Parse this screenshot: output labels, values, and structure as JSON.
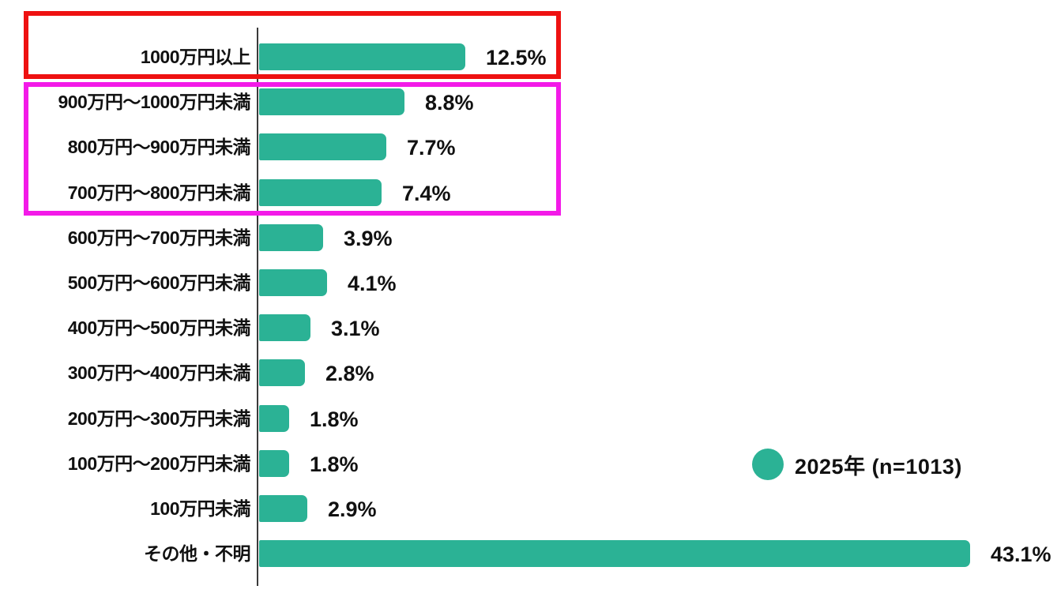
{
  "chart_data": {
    "type": "bar",
    "orientation": "horizontal",
    "title": "",
    "xlabel": "",
    "ylabel": "",
    "xlim": [
      0,
      45
    ],
    "grid": false,
    "categories": [
      "1000万円以上",
      "900万円〜1000万円未満",
      "800万円〜900万円未満",
      "700万円〜800万円未満",
      "600万円〜700万円未満",
      "500万円〜600万円未満",
      "400万円〜500万円未満",
      "300万円〜400万円未満",
      "200万円〜300万円未満",
      "100万円〜200万円未満",
      "100万円未満",
      "その他・不明"
    ],
    "values": [
      12.5,
      8.8,
      7.7,
      7.4,
      3.9,
      4.1,
      3.1,
      2.8,
      1.8,
      1.8,
      2.9,
      43.1
    ],
    "value_labels": [
      "12.5%",
      "8.8%",
      "7.7%",
      "7.4%",
      "3.9%",
      "4.1%",
      "3.1%",
      "2.8%",
      "1.8%",
      "1.8%",
      "2.9%",
      "43.1%"
    ],
    "bar_color": "#2bb295",
    "axis_color": "#3a3a3a",
    "text_color": "#111111",
    "legend": {
      "label": "2025年 (n=1013)",
      "marker": "circle",
      "marker_color": "#2bb295",
      "position": "right-middle"
    },
    "annotations": [
      {
        "type": "highlight-box",
        "color": "#ee1111",
        "categories": [
          "1000万円以上"
        ]
      },
      {
        "type": "highlight-box",
        "color": "#f31ae8",
        "categories": [
          "900万円〜1000万円未満",
          "800万円〜900万円未満",
          "700万円〜800万円未満"
        ]
      }
    ]
  }
}
